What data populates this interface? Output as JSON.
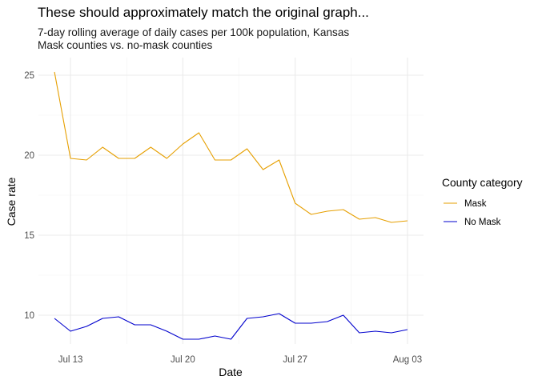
{
  "chart_data": {
    "type": "line",
    "title": "These should approximately match the original graph...",
    "subtitle": [
      "7-day rolling average of daily cases per 100k population, Kansas",
      "Mask counties vs. no-mask counties"
    ],
    "xlabel": "Date",
    "ylabel": "Case rate",
    "x_ticks": [
      "Jul 13",
      "Jul 20",
      "Jul 27",
      "Aug 03"
    ],
    "y_ticks": [
      10,
      15,
      20,
      25
    ],
    "xlim": [
      "2020-07-11",
      "2020-08-04"
    ],
    "ylim": [
      8.2,
      26.1
    ],
    "grid": true,
    "legend_title": "County category",
    "legend_position": "right",
    "x": [
      "2020-07-12",
      "2020-07-13",
      "2020-07-14",
      "2020-07-15",
      "2020-07-16",
      "2020-07-17",
      "2020-07-18",
      "2020-07-19",
      "2020-07-20",
      "2020-07-21",
      "2020-07-22",
      "2020-07-23",
      "2020-07-24",
      "2020-07-25",
      "2020-07-26",
      "2020-07-27",
      "2020-07-28",
      "2020-07-29",
      "2020-07-30",
      "2020-07-31",
      "2020-08-01",
      "2020-08-02",
      "2020-08-03"
    ],
    "series": [
      {
        "name": "Mask",
        "color": "#e69f00",
        "values": [
          25.2,
          19.8,
          19.7,
          20.5,
          19.8,
          19.8,
          20.5,
          19.8,
          20.7,
          21.4,
          19.7,
          19.7,
          20.4,
          19.1,
          19.7,
          17.0,
          16.3,
          16.5,
          16.6,
          16.0,
          16.1,
          15.8,
          15.9
        ]
      },
      {
        "name": "No Mask",
        "color": "#0000cd",
        "values": [
          9.8,
          9.0,
          9.3,
          9.8,
          9.9,
          9.4,
          9.4,
          9.0,
          8.5,
          8.5,
          8.7,
          8.5,
          9.8,
          9.9,
          10.1,
          9.5,
          9.5,
          9.6,
          10.0,
          8.9,
          9.0,
          8.9,
          9.1
        ]
      }
    ]
  }
}
